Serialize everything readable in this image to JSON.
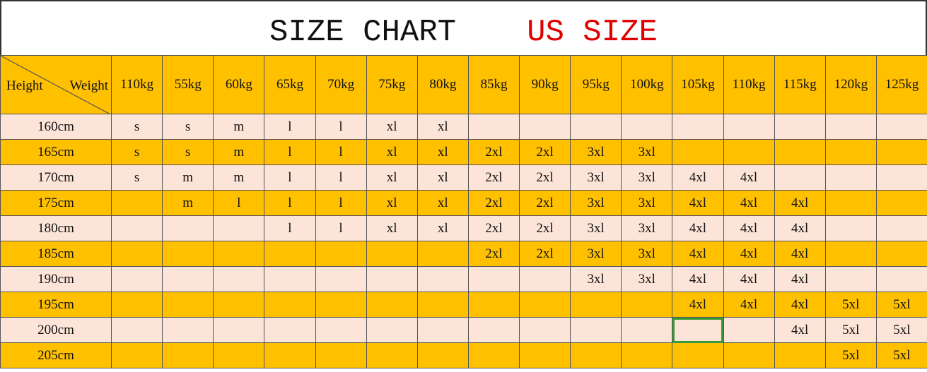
{
  "header": {
    "title": "SIZE CHART",
    "subtitle": "US SIZE"
  },
  "table": {
    "corner": {
      "row_label": "Height",
      "column_label": "Weight"
    },
    "columns": [
      "110kg",
      "55kg",
      "60kg",
      "65kg",
      "70kg",
      "75kg",
      "80kg",
      "85kg",
      "90kg",
      "95kg",
      "100kg",
      "105kg",
      "110kg",
      "115kg",
      "120kg",
      "125kg"
    ],
    "rows": [
      {
        "label": "160cm",
        "cells": [
          "s",
          "s",
          "m",
          "l",
          "l",
          "xl",
          "xl",
          null,
          null,
          null,
          null,
          null,
          null,
          null,
          null,
          null
        ]
      },
      {
        "label": "165cm",
        "cells": [
          "s",
          "s",
          "m",
          "l",
          "l",
          "xl",
          "xl",
          "2xl",
          "2xl",
          "3xl",
          "3xl",
          null,
          null,
          null,
          null,
          null
        ]
      },
      {
        "label": "170cm",
        "cells": [
          "s",
          "m",
          "m",
          "l",
          "l",
          "xl",
          "xl",
          "2xl",
          "2xl",
          "3xl",
          "3xl",
          "4xl",
          "4xl",
          null,
          null,
          null
        ]
      },
      {
        "label": "175cm",
        "cells": [
          null,
          "m",
          "l",
          "l",
          "l",
          "xl",
          "xl",
          "2xl",
          "2xl",
          "3xl",
          "3xl",
          "4xl",
          "4xl",
          "4xl",
          null,
          null
        ]
      },
      {
        "label": "180cm",
        "cells": [
          null,
          null,
          null,
          "l",
          "l",
          "xl",
          "xl",
          "2xl",
          "2xl",
          "3xl",
          "3xl",
          "4xl",
          "4xl",
          "4xl",
          null,
          null
        ]
      },
      {
        "label": "185cm",
        "cells": [
          null,
          null,
          null,
          null,
          null,
          null,
          null,
          "2xl",
          "2xl",
          "3xl",
          "3xl",
          "4xl",
          "4xl",
          "4xl",
          null,
          null
        ]
      },
      {
        "label": "190cm",
        "cells": [
          null,
          null,
          null,
          null,
          null,
          null,
          null,
          null,
          null,
          "3xl",
          "3xl",
          "4xl",
          "4xl",
          "4xl",
          null,
          null
        ]
      },
      {
        "label": "195cm",
        "cells": [
          null,
          null,
          null,
          null,
          null,
          null,
          null,
          null,
          null,
          null,
          null,
          "4xl",
          "4xl",
          "4xl",
          "5xl",
          "5xl"
        ]
      },
      {
        "label": "200cm",
        "cells": [
          null,
          null,
          null,
          null,
          null,
          null,
          null,
          null,
          null,
          null,
          null,
          null,
          null,
          "4xl",
          "5xl",
          "5xl"
        ]
      },
      {
        "label": "205cm",
        "cells": [
          null,
          null,
          null,
          null,
          null,
          null,
          null,
          null,
          null,
          null,
          null,
          null,
          null,
          null,
          "5xl",
          "5xl"
        ]
      }
    ]
  }
}
